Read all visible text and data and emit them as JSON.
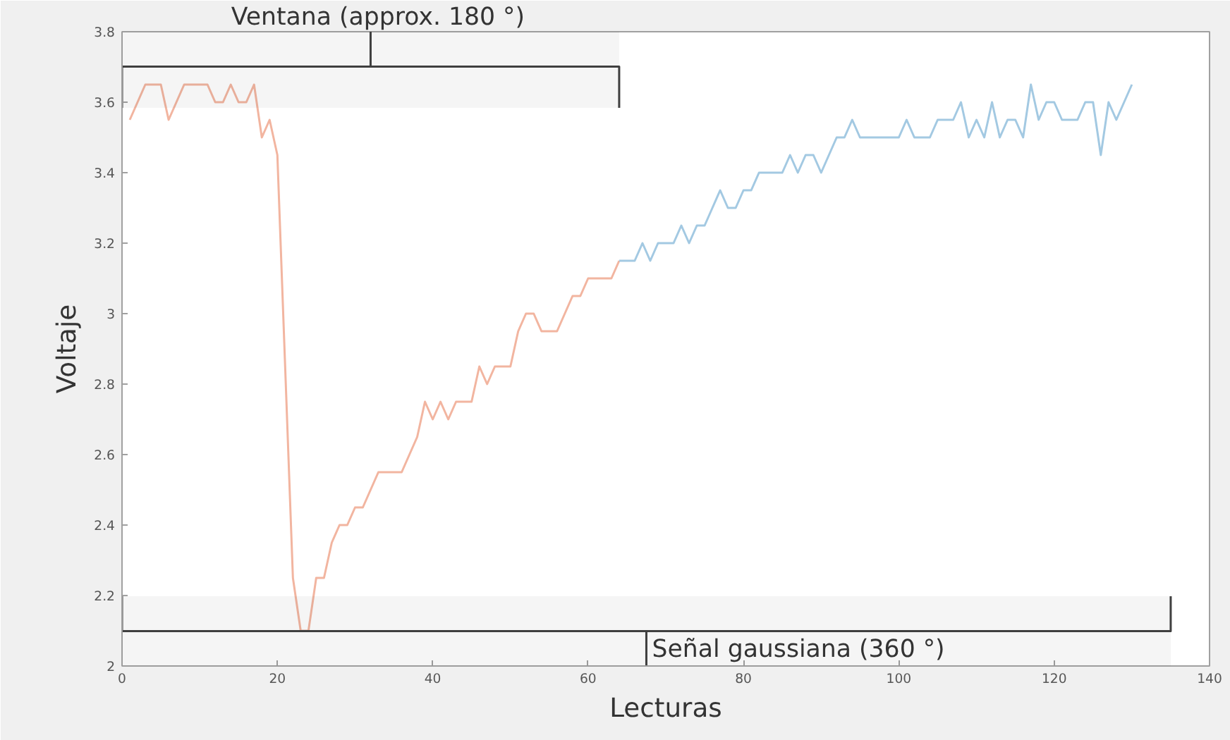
{
  "chart_data": {
    "type": "line",
    "xlabel": "Lecturas",
    "ylabel": "Voltaje",
    "xlim": [
      0,
      140
    ],
    "xticks": [
      0,
      20,
      40,
      60,
      80,
      100,
      120,
      140
    ],
    "ylim": [
      2,
      3.8
    ],
    "yticks": [
      2,
      2.2,
      2.4,
      2.6,
      2.8,
      3,
      3.2,
      3.4,
      3.6,
      3.8
    ],
    "grid": false,
    "series": [
      {
        "color": "#f2b5a0",
        "x": [
          1,
          2,
          3,
          4,
          5,
          6,
          7,
          8,
          9,
          10,
          11,
          12,
          13,
          14,
          15,
          16,
          17,
          18,
          19,
          20,
          21,
          22,
          23,
          24,
          25,
          26,
          27,
          28,
          29,
          30,
          31,
          32,
          33,
          34,
          35,
          36,
          37,
          38,
          39,
          40,
          41,
          42,
          43,
          44,
          45,
          46,
          47,
          48,
          49,
          50,
          51,
          52,
          53,
          54,
          55,
          56,
          57,
          58,
          59,
          60,
          61,
          62,
          63,
          64
        ],
        "values": [
          3.55,
          3.6,
          3.65,
          3.65,
          3.65,
          3.55,
          3.6,
          3.65,
          3.65,
          3.65,
          3.65,
          3.6,
          3.6,
          3.65,
          3.6,
          3.6,
          3.65,
          3.5,
          3.55,
          3.45,
          2.85,
          2.25,
          2.1,
          2.1,
          2.25,
          2.25,
          2.35,
          2.4,
          2.4,
          2.45,
          2.45,
          2.5,
          2.55,
          2.55,
          2.55,
          2.55,
          2.6,
          2.65,
          2.75,
          2.7,
          2.75,
          2.7,
          2.75,
          2.75,
          2.75,
          2.85,
          2.8,
          2.85,
          2.85,
          2.85,
          2.95,
          3.0,
          3.0,
          2.95,
          2.95,
          2.95,
          3.0,
          3.05,
          3.05,
          3.1,
          3.1,
          3.1,
          3.1,
          3.15
        ]
      },
      {
        "color": "#a3c9e2",
        "x": [
          64,
          65,
          66,
          67,
          68,
          69,
          70,
          71,
          72,
          73,
          74,
          75,
          76,
          77,
          78,
          79,
          80,
          81,
          82,
          83,
          84,
          85,
          86,
          87,
          88,
          89,
          90,
          91,
          92,
          93,
          94,
          95,
          96,
          97,
          98,
          99,
          100,
          101,
          102,
          103,
          104,
          105,
          106,
          107,
          108,
          109,
          110,
          111,
          112,
          113,
          114,
          115,
          116,
          117,
          118,
          119,
          120,
          121,
          122,
          123,
          124,
          125,
          126,
          127,
          128,
          129,
          130
        ],
        "values": [
          3.15,
          3.15,
          3.15,
          3.2,
          3.15,
          3.2,
          3.2,
          3.2,
          3.25,
          3.2,
          3.25,
          3.25,
          3.3,
          3.35,
          3.3,
          3.3,
          3.35,
          3.35,
          3.4,
          3.4,
          3.4,
          3.4,
          3.45,
          3.4,
          3.45,
          3.45,
          3.4,
          3.45,
          3.5,
          3.5,
          3.55,
          3.5,
          3.5,
          3.5,
          3.5,
          3.5,
          3.5,
          3.55,
          3.5,
          3.5,
          3.5,
          3.55,
          3.55,
          3.55,
          3.6,
          3.5,
          3.55,
          3.5,
          3.6,
          3.5,
          3.55,
          3.55,
          3.5,
          3.65,
          3.55,
          3.6,
          3.6,
          3.55,
          3.55,
          3.55,
          3.6,
          3.6,
          3.45,
          3.6,
          3.55,
          3.6,
          3.65
        ]
      }
    ],
    "bands": [
      {
        "axis": "x",
        "from": 0,
        "to": 64,
        "label": "Ventana (approx. 180 °)",
        "color": "#404040"
      },
      {
        "axis": "x",
        "from": 0,
        "to": 135,
        "label": "Señal gaussiana (360 °)",
        "color": "#404040"
      }
    ]
  }
}
